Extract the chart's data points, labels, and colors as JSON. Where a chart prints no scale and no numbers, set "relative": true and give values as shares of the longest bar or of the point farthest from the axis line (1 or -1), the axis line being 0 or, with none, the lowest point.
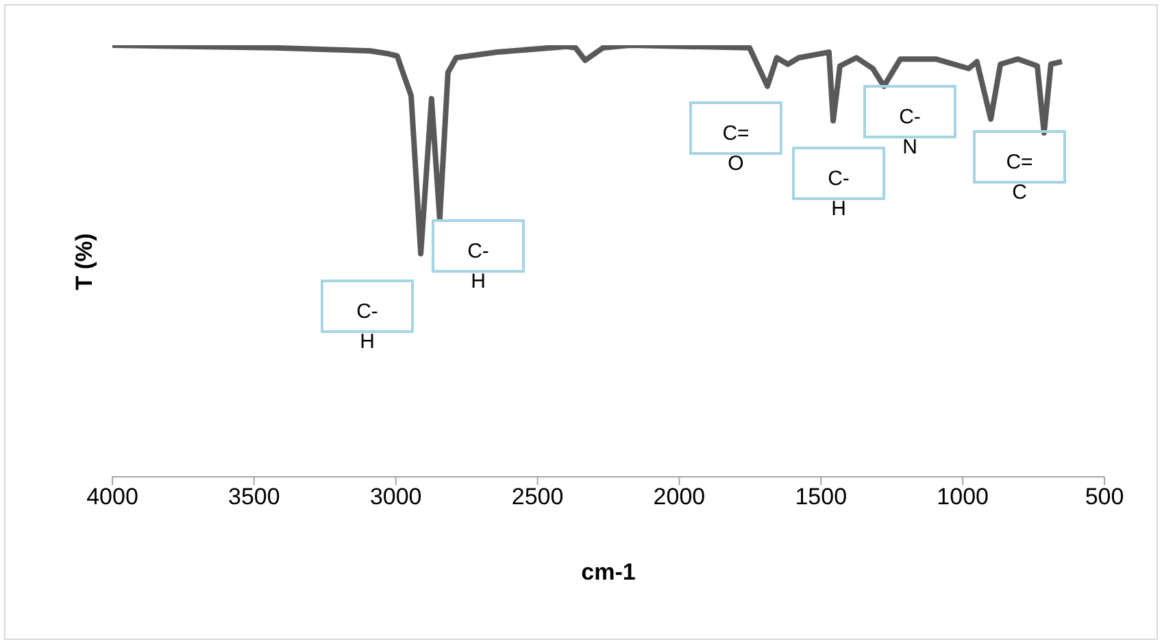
{
  "chart_data": {
    "type": "line",
    "xlabel": "cm-1",
    "ylabel": "T (%)",
    "relative": true,
    "color": "#595959",
    "line_style": "solid",
    "xlim": [
      4000,
      500
    ],
    "xticks": [
      4000,
      3500,
      3000,
      2500,
      2000,
      1500,
      1000,
      500
    ],
    "x": [
      4000,
      3430,
      3091,
      3033,
      2995,
      2980,
      2946,
      2912,
      2874,
      2845,
      2816,
      2787,
      2642,
      2400,
      2366,
      2332,
      2269,
      2173,
      1752,
      1689,
      1656,
      1617,
      1578,
      1472,
      1457,
      1433,
      1375,
      1317,
      1278,
      1220,
      1095,
      979,
      950,
      901,
      867,
      805,
      737,
      713,
      689,
      650
    ],
    "values": [
      1.0,
      0.994,
      0.987,
      0.981,
      0.975,
      0.946,
      0.883,
      0.517,
      0.876,
      0.597,
      0.937,
      0.971,
      0.984,
      0.997,
      0.994,
      0.965,
      0.994,
      1.0,
      0.994,
      0.905,
      0.971,
      0.956,
      0.971,
      0.984,
      0.825,
      0.952,
      0.971,
      0.946,
      0.905,
      0.968,
      0.968,
      0.946,
      0.962,
      0.829,
      0.956,
      0.968,
      0.952,
      0.797,
      0.956,
      0.962
    ],
    "annotations": [
      "C-\nH",
      "C-\nH",
      "C=\nO",
      "C-\nH",
      "C-\nN",
      "C=\nC"
    ]
  }
}
